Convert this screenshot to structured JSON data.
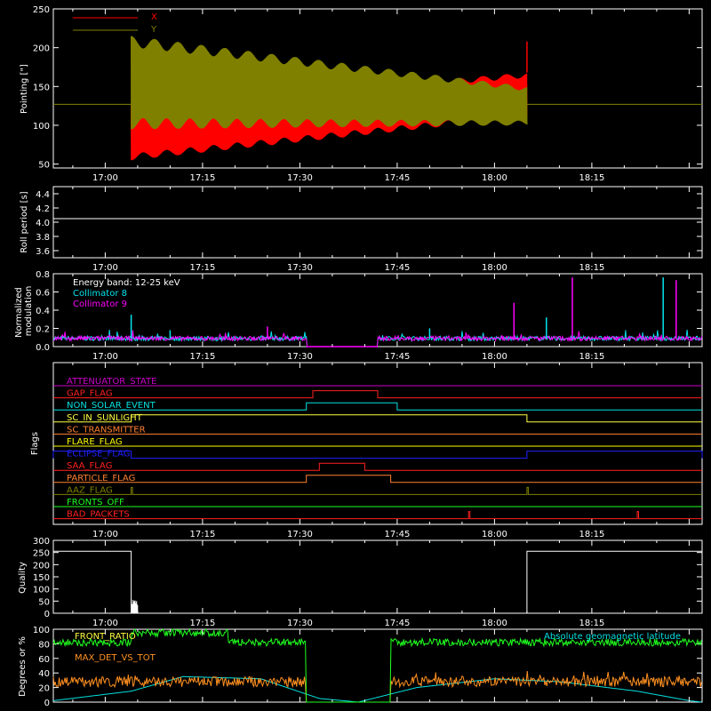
{
  "time_ticks": [
    "17:00",
    "17:15",
    "17:30",
    "17:45",
    "18:00",
    "18:15"
  ],
  "chart_data": [
    {
      "type": "line",
      "name": "pointing",
      "ylabel": "Pointing [\"]",
      "ylim": [
        45,
        250
      ],
      "yticks": [
        50,
        100,
        150,
        200,
        250
      ],
      "x_range": [
        "16:52",
        "18:32"
      ],
      "legend_placement": "top-left",
      "series": [
        {
          "name": "X",
          "color": "#ff0000",
          "start": "17:04",
          "end": "18:05",
          "upper_start": 127,
          "upper_end": 168,
          "lower_start": 55,
          "lower_end": 110
        },
        {
          "name": "Y",
          "color": "#808000",
          "start": "17:04",
          "end": "18:05",
          "upper_start": 215,
          "upper_end": 150,
          "lower_start": 95,
          "lower_end": 100
        }
      ],
      "baseline": 127,
      "spike": {
        "time": "18:05",
        "value": 208
      }
    },
    {
      "type": "line",
      "name": "roll-period",
      "ylabel": "Roll period [s]",
      "ylim": [
        3.5,
        4.5
      ],
      "yticks": [
        3.6,
        3.8,
        4.0,
        4.2,
        4.4
      ],
      "series": [
        {
          "color": "#ffffff",
          "value": 4.05
        }
      ]
    },
    {
      "type": "line",
      "name": "modulation",
      "ylabel": "Normalized modulation",
      "ylim": [
        0,
        0.8
      ],
      "yticks": [
        0.0,
        0.2,
        0.4,
        0.6,
        0.8
      ],
      "annotation": "Energy band: 12-25 keV",
      "gaps": [
        [
          "17:31",
          "17:42"
        ]
      ],
      "baseline": 0.09,
      "series": [
        {
          "name": "Collimator 8",
          "color": "#00e5ee"
        },
        {
          "name": "Collimator 9",
          "color": "#ff00ff"
        }
      ],
      "spikes": [
        {
          "time": "17:04",
          "value": 0.35,
          "color": "#00e5ee"
        },
        {
          "time": "17:10",
          "value": 0.18,
          "color": "#00e5ee"
        },
        {
          "time": "17:25",
          "value": 0.22,
          "color": "#ff00ff"
        },
        {
          "time": "17:50",
          "value": 0.2,
          "color": "#00e5ee"
        },
        {
          "time": "18:03",
          "value": 0.48,
          "color": "#ff00ff"
        },
        {
          "time": "18:08",
          "value": 0.32,
          "color": "#00e5ee"
        },
        {
          "time": "18:12",
          "value": 0.76,
          "color": "#ff00ff"
        },
        {
          "time": "18:26",
          "value": 0.76,
          "color": "#00e5ee"
        },
        {
          "time": "18:28",
          "value": 0.73,
          "color": "#ff00ff"
        }
      ]
    },
    {
      "type": "line",
      "name": "flags",
      "ylabel": "Flags",
      "flags": [
        {
          "label": "ATTENUATOR_STATE",
          "color": "#cc00cc",
          "pulses": []
        },
        {
          "label": "GAP_FLAG",
          "color": "#ff2020",
          "pulses": [
            [
              "17:32",
              "17:42"
            ]
          ]
        },
        {
          "label": "NON_SOLAR_EVENT",
          "color": "#00e0e0",
          "pulses": [
            [
              "17:31",
              "17:45"
            ]
          ]
        },
        {
          "label": "SC_IN_SUNLIGHT",
          "color": "#ffff40",
          "pulses": [
            [
              "17:04",
              "18:05"
            ]
          ]
        },
        {
          "label": "SC_TRANSMITTER",
          "color": "#ff8030",
          "pulses": []
        },
        {
          "label": "FLARE_FLAG",
          "color": "#ffff00",
          "pulses": []
        },
        {
          "label": "ECLIPSE_FLAG",
          "color": "#2020ff",
          "pulses": [
            [
              "16:52",
              "17:04"
            ],
            [
              "18:05",
              "18:32"
            ]
          ]
        },
        {
          "label": "SAA_FLAG",
          "color": "#ff2020",
          "pulses": [
            [
              "17:33",
              "17:40"
            ]
          ]
        },
        {
          "label": "PARTICLE_FLAG",
          "color": "#ff8030",
          "pulses": [
            [
              "17:31",
              "17:44"
            ]
          ]
        },
        {
          "label": "AAZ_FLAG",
          "color": "#808000",
          "pulses": [
            [
              "17:04",
              "17:04"
            ],
            [
              "18:05",
              "18:05"
            ]
          ]
        },
        {
          "label": "FRONTS_OFF",
          "color": "#20ff20",
          "pulses": []
        },
        {
          "label": "BAD_PACKETS",
          "color": "#ff2020",
          "pulses": [
            [
              "17:56",
              "17:56"
            ],
            [
              "18:22",
              "18:22"
            ]
          ]
        }
      ]
    },
    {
      "type": "line",
      "name": "quality",
      "ylabel": "Quality",
      "ylim": [
        0,
        300
      ],
      "yticks": [
        0,
        50,
        100,
        150,
        200,
        250,
        300
      ],
      "series": [
        {
          "color": "#ffffff",
          "segments": [
            {
              "from": "16:52",
              "to": "17:04",
              "value": 255
            },
            {
              "from": "17:04",
              "to": "18:05",
              "value": 0
            },
            {
              "from": "18:05",
              "to": "18:32",
              "value": 255
            }
          ]
        }
      ]
    },
    {
      "type": "line",
      "name": "ratios",
      "ylabel": "Degrees or %",
      "ylim": [
        0,
        100
      ],
      "yticks": [
        0,
        20,
        40,
        60,
        80,
        100
      ],
      "legend_placement": "top-left",
      "annotation": "Absolute geomagnetic latitude",
      "series": [
        {
          "name": "FRONT_RATIO",
          "color": "#20ff20"
        },
        {
          "name": "MAX_DET_VS_TOT",
          "color": "#ff9020"
        },
        {
          "name": "Absolute geomagnetic latitude",
          "color": "#00e0e0"
        }
      ]
    }
  ]
}
